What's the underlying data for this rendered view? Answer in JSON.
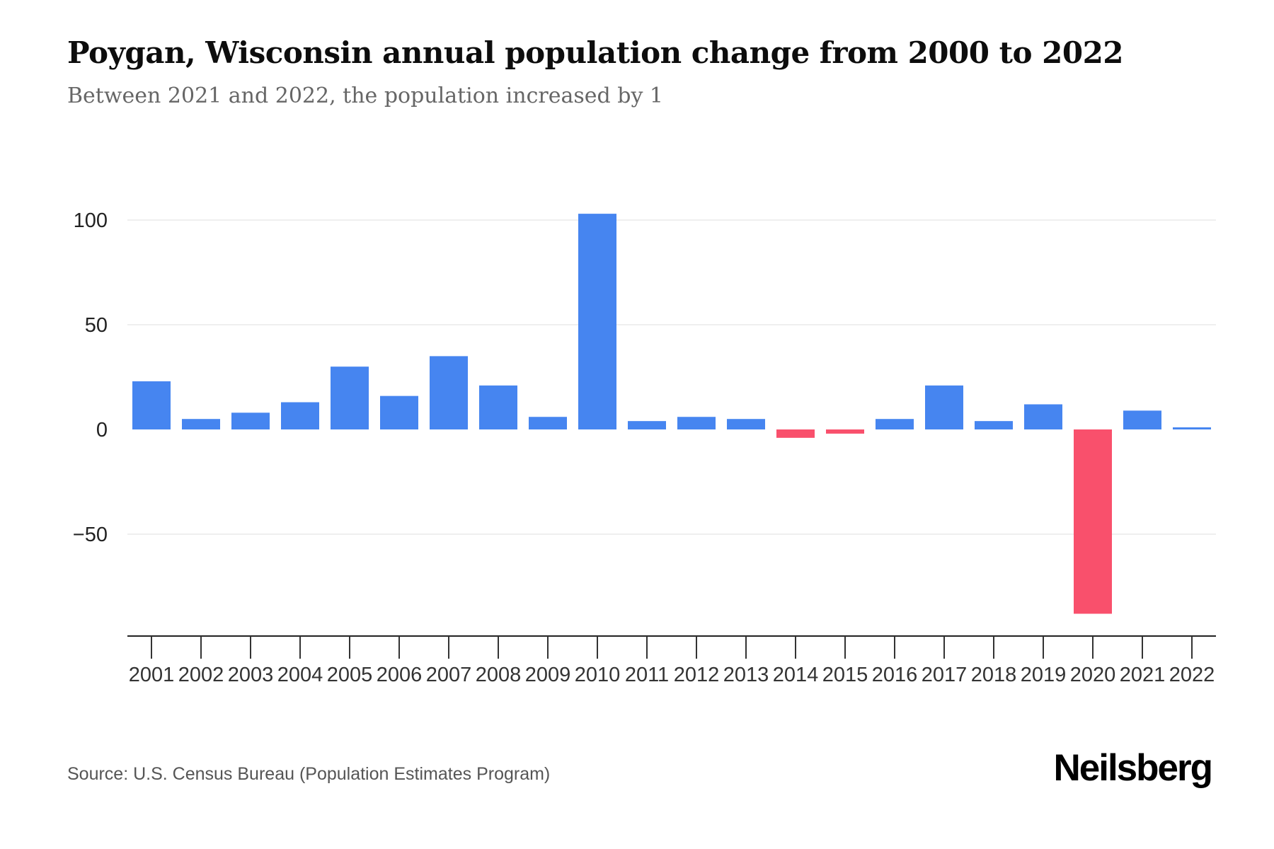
{
  "header": {
    "title": "Poygan, Wisconsin annual population change from 2000 to 2022",
    "subtitle": "Between 2021 and 2022, the population increased by 1"
  },
  "chart_data": {
    "type": "bar",
    "title": "Poygan, Wisconsin annual population change from 2000 to 2022",
    "xlabel": "",
    "ylabel": "",
    "categories": [
      "2001",
      "2002",
      "2003",
      "2004",
      "2005",
      "2006",
      "2007",
      "2008",
      "2009",
      "2010",
      "2011",
      "2012",
      "2013",
      "2014",
      "2015",
      "2016",
      "2017",
      "2018",
      "2019",
      "2020",
      "2021",
      "2022"
    ],
    "values": [
      23,
      5,
      8,
      13,
      30,
      16,
      35,
      21,
      6,
      103,
      4,
      6,
      5,
      -4,
      -2,
      5,
      21,
      4,
      12,
      -88,
      9,
      1
    ],
    "ylim": [
      -98,
      124
    ],
    "yticks": [
      100,
      50,
      0,
      -50
    ],
    "gridline_ticks": [
      100,
      50,
      -50
    ],
    "grid": "horizontal-light",
    "legend": "none",
    "positive_color": "#4685F0",
    "negative_color": "#F9506C",
    "gridline_color": "#efefef",
    "axis_color": "#222222",
    "tick_label_color": "#333333"
  },
  "footer": {
    "source": "Source: U.S. Census Bureau (Population Estimates Program)",
    "brand": "Neilsberg"
  }
}
